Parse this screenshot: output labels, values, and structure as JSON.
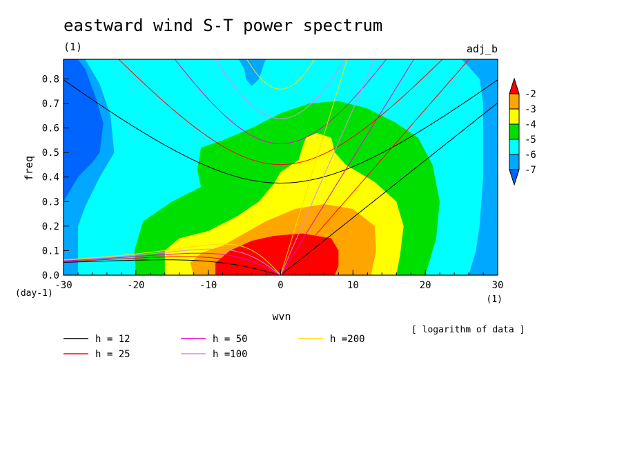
{
  "chart_data": {
    "type": "heatmap",
    "title": "eastward wind S-T power spectrum",
    "subtitle_left": "(1)",
    "subtitle_right": "adj_b",
    "xlabel": "wvn",
    "ylabel": "freq",
    "x_unit": "(1)",
    "y_unit": "(day-1)",
    "xlim": [
      -30,
      30
    ],
    "ylim": [
      0,
      0.88
    ],
    "x_ticks": [
      "-30",
      "-20",
      "-10",
      "0",
      "10",
      "20",
      "30"
    ],
    "x_tick_values": [
      -30,
      -20,
      -10,
      0,
      10,
      20,
      30
    ],
    "y_ticks": [
      "0.0",
      "0.1",
      "0.2",
      "0.3",
      "0.4",
      "0.5",
      "0.6",
      "0.7",
      "0.8"
    ],
    "y_tick_values": [
      0.0,
      0.1,
      0.2,
      0.3,
      0.4,
      0.5,
      0.6,
      0.7,
      0.8
    ],
    "colorbar": {
      "label": "[ logarithm of data ]",
      "levels": [
        "-2",
        "-3",
        "-4",
        "-5",
        "-6",
        "-7"
      ],
      "colors": [
        "#ff0000",
        "#ffa500",
        "#ffff00",
        "#00e000",
        "#00ffff",
        "#00a8ff",
        "#0064ff"
      ]
    },
    "grid": false,
    "field": {
      "description_levels": [
        -7,
        -6,
        -5,
        -4,
        -3,
        -2
      ],
      "regions": [
        {
          "level": -7,
          "color": "#0064ff",
          "x": [
            -30,
            -24
          ],
          "y": [
            0.3,
            0.88
          ]
        },
        {
          "level": -6,
          "color": "#00a8ff",
          "x": [
            -30,
            30
          ],
          "y": [
            0,
            0.88
          ]
        },
        {
          "level": -5,
          "color": "#00ffff",
          "x": [
            -28,
            28
          ],
          "y": [
            0,
            0.88
          ]
        },
        {
          "level": -4,
          "color": "#00e000",
          "x": [
            -20,
            22
          ],
          "y": [
            0,
            0.7
          ]
        },
        {
          "level": -3,
          "color": "#ffff00",
          "x": [
            -16,
            17
          ],
          "y": [
            0,
            0.58
          ]
        },
        {
          "level": -2,
          "color": "#ffa500",
          "x": [
            -12,
            13
          ],
          "y": [
            0,
            0.29
          ]
        },
        {
          "level": -1,
          "color": "#ff0000",
          "x": [
            -9,
            8
          ],
          "y": [
            0,
            0.17
          ]
        }
      ]
    },
    "series": [
      {
        "name": "h = 12",
        "color": "#000000",
        "h": 12
      },
      {
        "name": "h = 25",
        "color": "#ff0000",
        "h": 25
      },
      {
        "name": "h = 50",
        "color": "#ee00cc",
        "h": 50
      },
      {
        "name": "h =100",
        "color": "#dd88ee",
        "h": 100
      },
      {
        "name": "h =200",
        "color": "#ffdd00",
        "h": 200
      }
    ],
    "legend_placement": "bottom"
  }
}
